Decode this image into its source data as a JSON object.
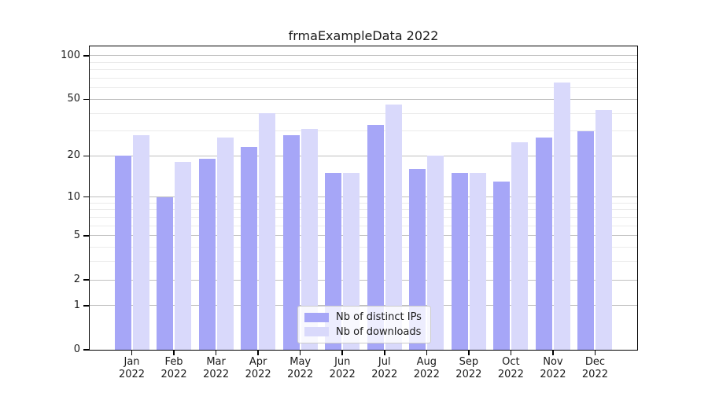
{
  "chart_data": {
    "type": "bar",
    "title": "frmaExampleData 2022",
    "categories": [
      "Jan",
      "Feb",
      "Mar",
      "Apr",
      "May",
      "Jun",
      "Jul",
      "Aug",
      "Sep",
      "Oct",
      "Nov",
      "Dec"
    ],
    "x_year": "2022",
    "series": [
      {
        "name": "Nb of distinct IPs",
        "color": "#a6a6f7",
        "values": [
          20,
          10,
          19,
          23,
          28,
          15,
          33,
          16,
          15,
          13,
          27,
          30
        ]
      },
      {
        "name": "Nb of downloads",
        "color": "#d9d9fb",
        "values": [
          28,
          18,
          27,
          40,
          31,
          15,
          46,
          20,
          15,
          25,
          65,
          42
        ]
      }
    ],
    "xlabel": "",
    "ylabel": "",
    "y_scale": "log1p",
    "y_ticks": [
      0,
      1,
      2,
      5,
      10,
      20,
      50,
      100
    ],
    "y_minor_ticks": [
      3,
      4,
      6,
      7,
      8,
      9,
      30,
      40,
      60,
      70,
      80,
      90
    ],
    "ylim": [
      0,
      120
    ],
    "grid": "on",
    "legend_position": "lower center",
    "colors": {
      "axis": "#000000",
      "major_grid": "#bfbfbf",
      "minor_grid": "#ebebeb",
      "text": "#1a1a1a"
    }
  }
}
